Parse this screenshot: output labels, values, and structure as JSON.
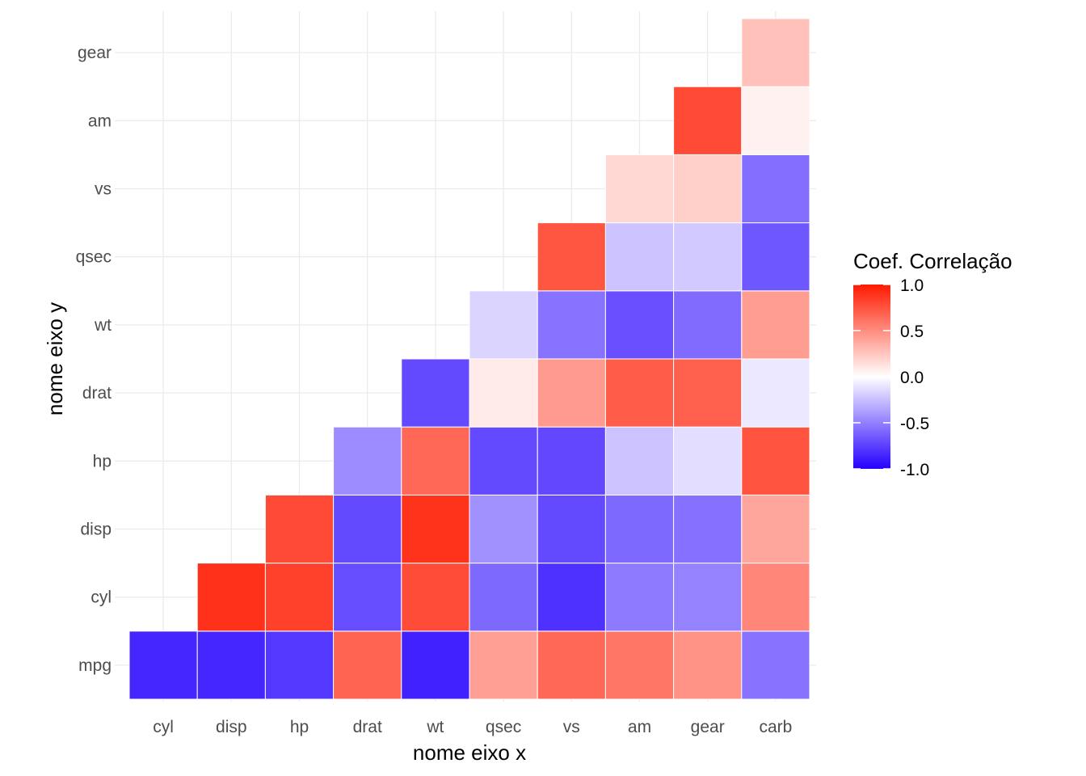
{
  "chart_data": {
    "type": "heatmap",
    "title": "",
    "xlabel": "nome eixo x",
    "ylabel": "nome eixo y",
    "x_categories": [
      "cyl",
      "disp",
      "hp",
      "drat",
      "wt",
      "qsec",
      "vs",
      "am",
      "gear",
      "carb"
    ],
    "y_categories": [
      "mpg",
      "cyl",
      "disp",
      "hp",
      "drat",
      "wt",
      "qsec",
      "vs",
      "am",
      "gear"
    ],
    "cells": [
      {
        "x": "cyl",
        "y": "mpg",
        "value": -0.85
      },
      {
        "x": "disp",
        "y": "mpg",
        "value": -0.85
      },
      {
        "x": "hp",
        "y": "mpg",
        "value": -0.78
      },
      {
        "x": "drat",
        "y": "mpg",
        "value": 0.68
      },
      {
        "x": "wt",
        "y": "mpg",
        "value": -0.87
      },
      {
        "x": "qsec",
        "y": "mpg",
        "value": 0.42
      },
      {
        "x": "vs",
        "y": "mpg",
        "value": 0.66
      },
      {
        "x": "am",
        "y": "mpg",
        "value": 0.6
      },
      {
        "x": "gear",
        "y": "mpg",
        "value": 0.48
      },
      {
        "x": "carb",
        "y": "mpg",
        "value": -0.55
      },
      {
        "x": "disp",
        "y": "cyl",
        "value": 0.9
      },
      {
        "x": "hp",
        "y": "cyl",
        "value": 0.83
      },
      {
        "x": "drat",
        "y": "cyl",
        "value": -0.7
      },
      {
        "x": "wt",
        "y": "cyl",
        "value": 0.78
      },
      {
        "x": "qsec",
        "y": "cyl",
        "value": -0.59
      },
      {
        "x": "vs",
        "y": "cyl",
        "value": -0.81
      },
      {
        "x": "am",
        "y": "cyl",
        "value": -0.52
      },
      {
        "x": "gear",
        "y": "cyl",
        "value": -0.49
      },
      {
        "x": "carb",
        "y": "cyl",
        "value": 0.53
      },
      {
        "x": "hp",
        "y": "disp",
        "value": 0.79
      },
      {
        "x": "drat",
        "y": "disp",
        "value": -0.71
      },
      {
        "x": "wt",
        "y": "disp",
        "value": 0.89
      },
      {
        "x": "qsec",
        "y": "disp",
        "value": -0.43
      },
      {
        "x": "vs",
        "y": "disp",
        "value": -0.71
      },
      {
        "x": "am",
        "y": "disp",
        "value": -0.59
      },
      {
        "x": "gear",
        "y": "disp",
        "value": -0.56
      },
      {
        "x": "carb",
        "y": "disp",
        "value": 0.39
      },
      {
        "x": "drat",
        "y": "hp",
        "value": -0.45
      },
      {
        "x": "wt",
        "y": "hp",
        "value": 0.66
      },
      {
        "x": "qsec",
        "y": "hp",
        "value": -0.71
      },
      {
        "x": "vs",
        "y": "hp",
        "value": -0.72
      },
      {
        "x": "am",
        "y": "hp",
        "value": -0.24
      },
      {
        "x": "gear",
        "y": "hp",
        "value": -0.13
      },
      {
        "x": "carb",
        "y": "hp",
        "value": 0.75
      },
      {
        "x": "wt",
        "y": "drat",
        "value": -0.71
      },
      {
        "x": "qsec",
        "y": "drat",
        "value": 0.09
      },
      {
        "x": "vs",
        "y": "drat",
        "value": 0.44
      },
      {
        "x": "am",
        "y": "drat",
        "value": 0.71
      },
      {
        "x": "gear",
        "y": "drat",
        "value": 0.7
      },
      {
        "x": "carb",
        "y": "drat",
        "value": -0.09
      },
      {
        "x": "qsec",
        "y": "wt",
        "value": -0.17
      },
      {
        "x": "vs",
        "y": "wt",
        "value": -0.55
      },
      {
        "x": "am",
        "y": "wt",
        "value": -0.69
      },
      {
        "x": "gear",
        "y": "wt",
        "value": -0.58
      },
      {
        "x": "carb",
        "y": "wt",
        "value": 0.43
      },
      {
        "x": "vs",
        "y": "qsec",
        "value": 0.74
      },
      {
        "x": "am",
        "y": "qsec",
        "value": -0.23
      },
      {
        "x": "gear",
        "y": "qsec",
        "value": -0.21
      },
      {
        "x": "carb",
        "y": "qsec",
        "value": -0.66
      },
      {
        "x": "am",
        "y": "vs",
        "value": 0.17
      },
      {
        "x": "gear",
        "y": "vs",
        "value": 0.21
      },
      {
        "x": "carb",
        "y": "vs",
        "value": -0.57
      },
      {
        "x": "gear",
        "y": "am",
        "value": 0.79
      },
      {
        "x": "carb",
        "y": "am",
        "value": 0.06
      },
      {
        "x": "carb",
        "y": "gear",
        "value": 0.27
      }
    ],
    "color_scale": {
      "low": "#2500ff",
      "mid": "#ffffff",
      "high": "#ff1a00",
      "limits": [
        -1.0,
        1.0
      ]
    },
    "grid": true,
    "legend": {
      "title": "Coef. Correlação",
      "position": "right",
      "breaks": [
        1.0,
        0.5,
        0.0,
        -0.5,
        -1.0
      ],
      "labels": [
        "1.0",
        "0.5",
        "0.0",
        "-0.5",
        "-1.0"
      ]
    }
  }
}
